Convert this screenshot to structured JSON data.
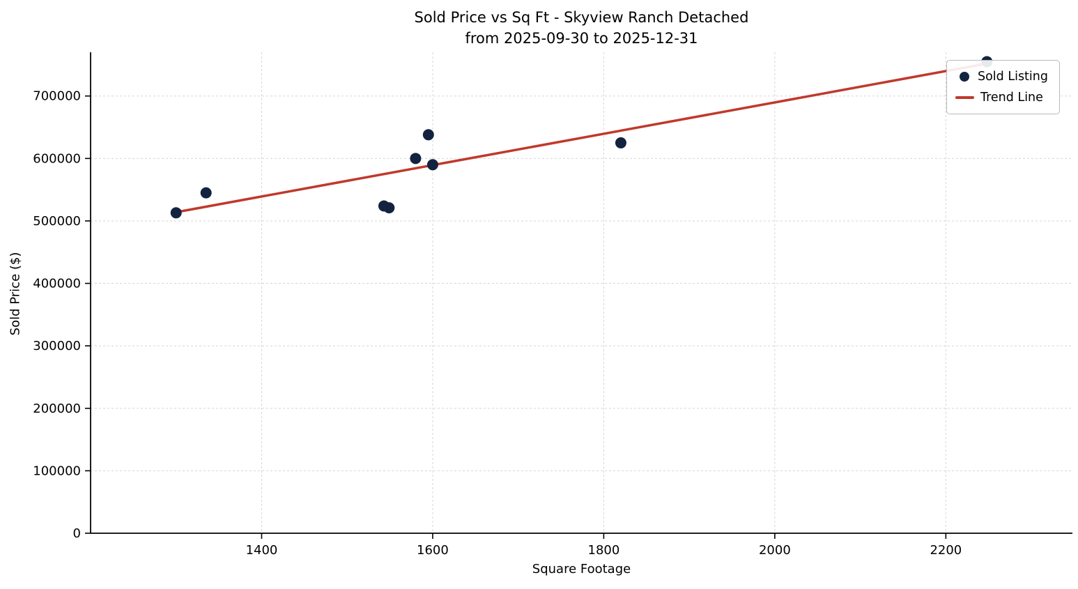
{
  "chart_data": {
    "type": "scatter",
    "title_line1": "Sold Price vs Sq Ft - Skyview Ranch Detached",
    "title_line2": "from 2025-09-30 to 2025-12-31",
    "xlabel": "Square Footage",
    "ylabel": "Sold Price ($)",
    "xlim": [
      1200,
      2348
    ],
    "ylim": [
      0,
      770000
    ],
    "x_ticks": [
      1400,
      1600,
      1800,
      2000,
      2200
    ],
    "y_ticks": [
      0,
      100000,
      200000,
      300000,
      400000,
      500000,
      600000,
      700000
    ],
    "grid": true,
    "legend_position": "upper right",
    "points": [
      {
        "sqft": 1300,
        "price": 513000
      },
      {
        "sqft": 1335,
        "price": 545000
      },
      {
        "sqft": 1543,
        "price": 524000
      },
      {
        "sqft": 1549,
        "price": 521000
      },
      {
        "sqft": 1580,
        "price": 600000
      },
      {
        "sqft": 1595,
        "price": 638000
      },
      {
        "sqft": 1600,
        "price": 590000
      },
      {
        "sqft": 1820,
        "price": 625000
      },
      {
        "sqft": 2248,
        "price": 755000
      }
    ],
    "trend_line": {
      "x": [
        1300,
        2248
      ],
      "y": [
        514000,
        752000
      ]
    },
    "legend": [
      {
        "label": "Sold Listing",
        "type": "marker"
      },
      {
        "label": "Trend Line",
        "type": "line"
      }
    ],
    "colors": {
      "point": "#13233f",
      "trend": "#c0392b",
      "grid": "#d5d5d5",
      "axis": "#000000"
    }
  }
}
